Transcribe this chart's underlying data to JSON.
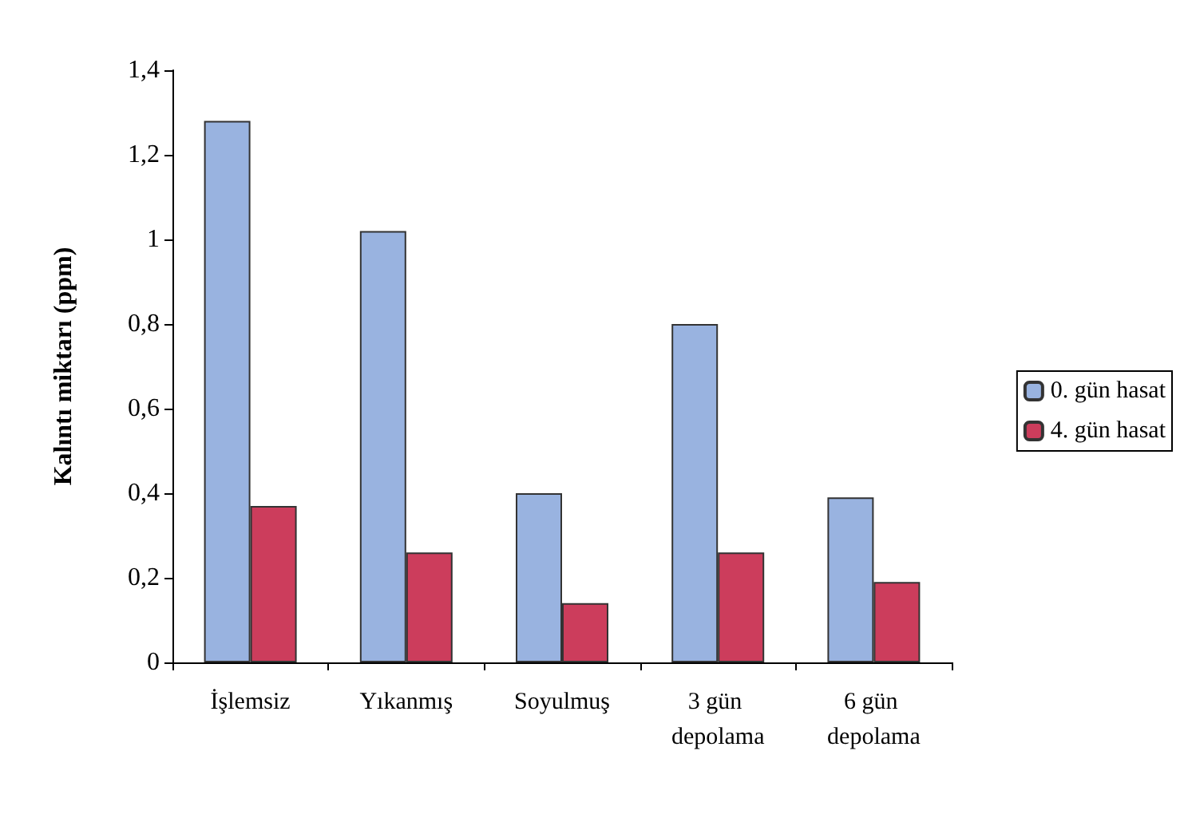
{
  "chart_data": {
    "type": "bar",
    "ylabel": "Kalıntı miktarı (ppm)",
    "categories": [
      "İşlemsiz",
      "Yıkanmış",
      "Soyulmuş",
      "3 gün depolama",
      "6 gün depolama"
    ],
    "series": [
      {
        "name": "0. gün hasat",
        "color": "#99b3e0",
        "values": [
          1.28,
          1.02,
          0.4,
          0.8,
          0.39
        ]
      },
      {
        "name": "4. gün hasat",
        "color": "#cc3d5c",
        "values": [
          0.37,
          0.26,
          0.14,
          0.26,
          0.19
        ]
      }
    ],
    "ylim": [
      0,
      1.4
    ],
    "yticks": [
      0,
      {
        "value": 0.2,
        "label": "0,2"
      },
      {
        "value": 0.4,
        "label": "0,4"
      },
      {
        "value": 0.6,
        "label": "0,6"
      },
      {
        "value": 0.8,
        "label": "0,8"
      },
      1,
      {
        "value": 1.2,
        "label": "1,2"
      },
      {
        "value": 1.4,
        "label": "1,4"
      }
    ],
    "grid": false,
    "legend": "right"
  }
}
